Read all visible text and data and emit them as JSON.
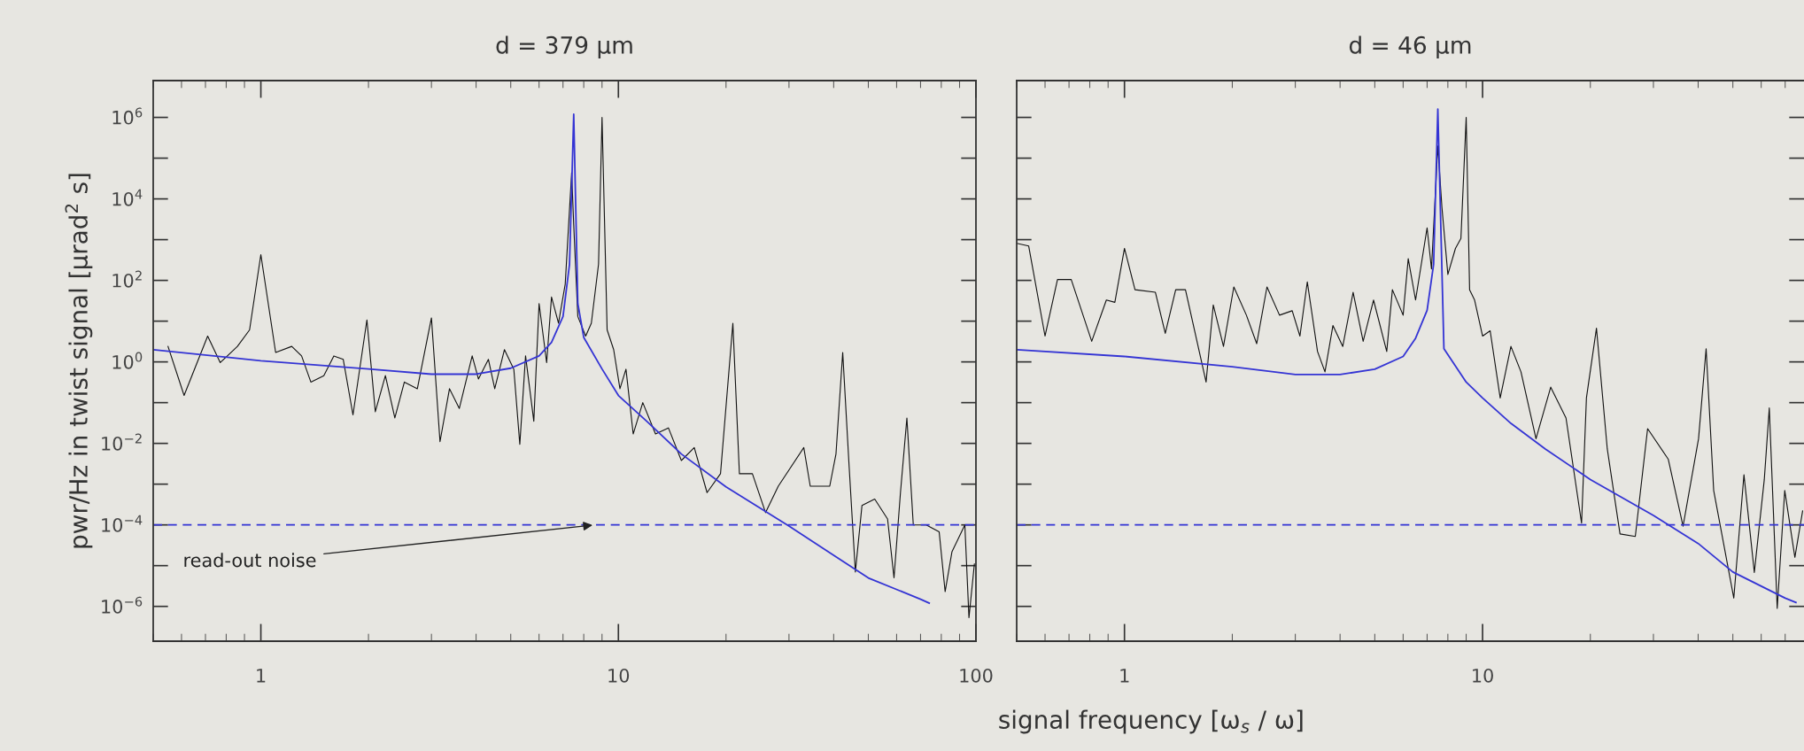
{
  "chart_data": [
    {
      "type": "line",
      "title": "d = 379 µm",
      "xlabel": "signal frequency [ω$_{s}$ / ω]",
      "ylabel": "pwr/Hz in twist signal [µrad$^{2}$ s]",
      "log": "xy",
      "grid": false,
      "legend": false,
      "xlim": [
        0.5,
        100
      ],
      "ylim": [
        1.4e-07,
        8000000.0
      ],
      "xticks": [
        1,
        10,
        100
      ],
      "yticks": [
        {
          "value": 1e-06,
          "label": "10$^{−6}$"
        },
        {
          "value": 0.0001,
          "label": "10$^{−4}$"
        },
        {
          "value": 0.01,
          "label": "10$^{−2}$"
        },
        {
          "value": 1,
          "label": "10$^{0}$"
        },
        {
          "value": 100,
          "label": "10$^{2}$"
        },
        {
          "value": 10000,
          "label": "10$^{4}$"
        },
        {
          "value": 1000000,
          "label": "10$^{6}$"
        }
      ],
      "ref_lines": [
        {
          "axis": "y",
          "value": 0.0001,
          "color": "#3434d4",
          "line_style": "dashed"
        }
      ],
      "annotations": [
        {
          "text": "read-out noise",
          "x": 8.6,
          "y": 0.0001
        }
      ],
      "series": [
        {
          "color": "#111111",
          "x": [
            0.55,
            0.61,
            0.71,
            0.77,
            0.86,
            0.93,
            1.0,
            1.1,
            1.22,
            1.3,
            1.38,
            1.5,
            1.6,
            1.7,
            1.81,
            1.98,
            2.09,
            2.23,
            2.37,
            2.52,
            2.74,
            3.0,
            3.17,
            3.37,
            3.59,
            3.9,
            4.06,
            4.33,
            4.51,
            4.8,
            5.1,
            5.3,
            5.5,
            5.8,
            6.0,
            6.3,
            6.5,
            6.8,
            7.1,
            7.4,
            7.5,
            7.7,
            8.1,
            8.4,
            8.8,
            9.0,
            9.3,
            9.7,
            10.1,
            10.5,
            11.0,
            11.7,
            12.7,
            13.8,
            15.0,
            16.3,
            17.7,
            19.3,
            20.9,
            21.8,
            23.7,
            25.8,
            28.0,
            33.0,
            34.4,
            39.0,
            40.6,
            42.4,
            44.2,
            46,
            48.0,
            52.1,
            56.6,
            59,
            61.5,
            64.1,
            66.8,
            72.6,
            78.9,
            82,
            85.7,
            93.1,
            95.6,
            99
          ],
          "values": [
            2.4,
            0.15,
            4.3,
            0.96,
            2.4,
            6.1,
            430,
            1.7,
            2.4,
            1.4,
            0.32,
            0.46,
            1.4,
            1.15,
            0.05,
            10.7,
            0.06,
            0.46,
            0.042,
            0.32,
            0.22,
            12,
            0.011,
            0.22,
            0.072,
            1.4,
            0.38,
            1.15,
            0.22,
            2.0,
            0.66,
            0.0095,
            1.4,
            0.035,
            27,
            0.96,
            39,
            8.9,
            81,
            44000,
            2300,
            13,
            4.3,
            8.9,
            250,
            1000000,
            6.1,
            2.0,
            0.22,
            0.66,
            0.017,
            0.1,
            0.017,
            0.024,
            0.0038,
            0.0079,
            0.00062,
            0.0018,
            8.9,
            0.0018,
            0.0018,
            0.0002,
            0.00089,
            0.0079,
            0.00089,
            0.00089,
            0.0055,
            1.7,
            0.0026,
            7e-06,
            0.0003,
            0.00043,
            0.00014,
            5e-06,
            0.00062,
            0.042,
            0.0001,
            0.0001,
            6.8e-05,
            2.3e-06,
            2.2e-05,
            0.0001,
            5.3e-07,
            1.1e-05
          ]
        },
        {
          "color": "#3434d4",
          "x": [
            0.5,
            1,
            2,
            3,
            4,
            5,
            6,
            6.5,
            7,
            7.3,
            7.5,
            7.7,
            8,
            9,
            10,
            12,
            15,
            20,
            30,
            40,
            50,
            70,
            74
          ],
          "values": [
            2,
            1.07,
            0.67,
            0.5,
            0.5,
            0.7,
            1.4,
            3,
            13,
            250,
            1200000,
            27,
            4,
            0.67,
            0.15,
            0.035,
            0.0055,
            0.00086,
            9.4e-05,
            1.8e-05,
            5e-06,
            1.5e-06,
            1.2e-06
          ]
        }
      ]
    },
    {
      "type": "line",
      "title": "d = 46 µm",
      "log": "xy",
      "grid": false,
      "legend": false,
      "tick_labels": "x",
      "xlim": [
        0.5,
        79
      ],
      "ylim": [
        1.4e-07,
        8000000.0
      ],
      "xticks": [
        1,
        10
      ],
      "yticks": [
        1e-06,
        0.0001,
        0.01,
        1,
        100,
        10000,
        1000000
      ],
      "ref_lines": [
        {
          "axis": "y",
          "value": 0.0001,
          "color": "#3434d4",
          "line_style": "dashed"
        }
      ],
      "series": [
        {
          "color": "#111111",
          "x": [
            0.5,
            0.54,
            0.6,
            0.65,
            0.71,
            0.81,
            0.89,
            0.94,
            1.0,
            1.07,
            1.22,
            1.3,
            1.39,
            1.48,
            1.69,
            1.77,
            1.89,
            2.02,
            2.19,
            2.34,
            2.5,
            2.71,
            2.94,
            3.09,
            3.24,
            3.46,
            3.63,
            3.82,
            4.07,
            4.35,
            4.64,
            4.96,
            5.4,
            5.6,
            6.0,
            6.2,
            6.5,
            7.0,
            7.2,
            7.5,
            7.7,
            8.0,
            8.4,
            8.7,
            9.0,
            9.2,
            9.5,
            10,
            10.5,
            11.2,
            12.0,
            12.8,
            14.1,
            15.5,
            17.1,
            18.9,
            19.5,
            20.8,
            22.3,
            24.2,
            26.7,
            28.9,
            33.0,
            36.3,
            40.1,
            42.1,
            44.2,
            50.3,
            53.7,
            57.4,
            61.2,
            63.2,
            66.5,
            69.8,
            74.5,
            78.3
          ],
          "values": [
            810,
            700,
            4.3,
            105,
            105,
            3.2,
            33,
            29,
            610,
            59,
            51,
            5.0,
            59,
            59,
            0.32,
            25,
            2.4,
            69,
            14,
            2.8,
            69,
            14,
            18,
            4.3,
            92,
            1.8,
            0.57,
            7.8,
            2.4,
            51,
            3.2,
            33,
            1.8,
            59,
            14,
            340,
            33,
            1950,
            190,
            200000,
            6200,
            140,
            610,
            1070,
            1000000,
            59,
            33,
            4.3,
            5.8,
            0.13,
            2.4,
            0.57,
            0.013,
            0.24,
            0.042,
            0.00011,
            0.13,
            6.7,
            0.0073,
            6e-05,
            5.2e-05,
            0.023,
            0.0041,
            9.3e-05,
            0.013,
            2.1,
            0.0007,
            1.6e-06,
            0.0017,
            6.8e-06,
            0.0013,
            0.074,
            8.9e-07,
            0.0007,
            1.6e-05,
            0.00022
          ]
        },
        {
          "color": "#3434d4",
          "x": [
            0.5,
            1,
            2,
            3,
            4,
            5,
            6,
            6.5,
            7,
            7.3,
            7.5,
            7.8,
            9,
            10,
            12,
            15,
            20,
            30,
            40,
            50,
            70,
            75
          ],
          "values": [
            2.0,
            1.36,
            0.76,
            0.49,
            0.49,
            0.66,
            1.36,
            3.8,
            18.5,
            250,
            1600000,
            2.1,
            0.32,
            0.13,
            0.031,
            0.0072,
            0.0013,
            0.00017,
            3.5e-05,
            7e-06,
            1.6e-06,
            1.25e-06
          ]
        }
      ]
    }
  ]
}
